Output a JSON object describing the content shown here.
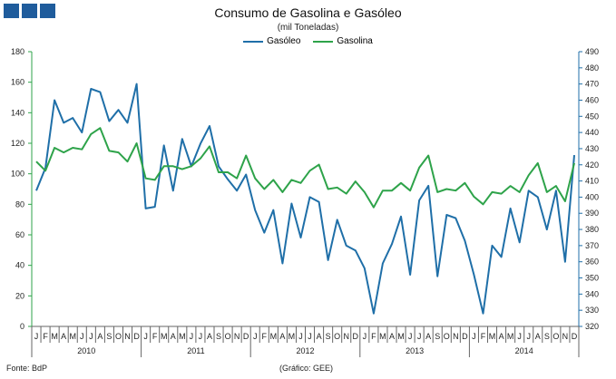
{
  "header": {
    "title": "Consumo de Gasolina e Gasóleo",
    "subtitle": "(mil Toneladas)"
  },
  "legend": {
    "gasoleo": "Gasóleo",
    "gasolina": "Gasolina"
  },
  "footer": {
    "source": "Fonte: BdP",
    "graphic": "(Gráfico: GEE)"
  },
  "colors": {
    "gasoleo": "#1f6fa8",
    "gasolina": "#2ea34a",
    "axis_left": "#2ea34a",
    "axis_right": "#1f6fa8"
  },
  "chart_data": {
    "type": "line",
    "title": "Consumo de Gasolina e Gasóleo",
    "subtitle": "(mil Toneladas)",
    "month_labels": [
      "J",
      "F",
      "M",
      "A",
      "M",
      "J",
      "J",
      "A",
      "S",
      "O",
      "N",
      "D"
    ],
    "years": [
      "2010",
      "2011",
      "2012",
      "2013",
      "2014"
    ],
    "grid": false,
    "legend_position": "top-center",
    "y_left": {
      "min": 0,
      "max": 180,
      "step": 20,
      "ticks": [
        "0",
        "20",
        "40",
        "60",
        "80",
        "100",
        "120",
        "140",
        "160",
        "180"
      ]
    },
    "y_right": {
      "min": 320,
      "max": 490,
      "step": 10,
      "ticks": [
        "320",
        "330",
        "340",
        "350",
        "360",
        "370",
        "380",
        "390",
        "400",
        "410",
        "420",
        "430",
        "440",
        "450",
        "460",
        "470",
        "480",
        "490"
      ]
    },
    "series": [
      {
        "name": "Gasóleo",
        "axis": "right",
        "values": [
          404,
          418,
          460,
          446,
          449,
          440,
          467,
          465,
          447,
          454,
          446,
          470,
          393,
          394,
          432,
          404,
          436,
          419,
          433,
          444,
          419,
          411,
          404,
          414,
          392,
          378,
          392,
          359,
          396,
          375,
          400,
          397,
          361,
          386,
          370,
          367,
          356,
          328,
          359,
          371,
          388,
          352,
          398,
          407,
          351,
          389,
          387,
          373,
          352,
          328,
          370,
          363,
          393,
          372,
          404,
          400,
          380,
          404,
          360,
          426
        ],
        "values_in_left_units": [
          88,
          99,
          150,
          131,
          135,
          124,
          156,
          154,
          134,
          142,
          133,
          162,
          82,
          84,
          119,
          93,
          122,
          105,
          119,
          131,
          105,
          96,
          88,
          99,
          76,
          62,
          76,
          37,
          83,
          56,
          90,
          79,
          41,
          66,
          50,
          46,
          34,
          8,
          37,
          52,
          72,
          32,
          82,
          92,
          33,
          71,
          68,
          53,
          30,
          8,
          52,
          45,
          75,
          51,
          88,
          83,
          60,
          88,
          41,
          112
        ]
      },
      {
        "name": "Gasolina",
        "axis": "left",
        "values": [
          108,
          102,
          117,
          114,
          117,
          116,
          126,
          130,
          115,
          114,
          108,
          120,
          97,
          96,
          105,
          105,
          103,
          105,
          110,
          118,
          101,
          101,
          97,
          112,
          97,
          90,
          96,
          88,
          96,
          94,
          102,
          106,
          90,
          91,
          87,
          95,
          88,
          78,
          89,
          89,
          94,
          89,
          104,
          112,
          88,
          90,
          89,
          94,
          85,
          80,
          88,
          87,
          92,
          88,
          99,
          107,
          88,
          92,
          82,
          107
        ]
      }
    ]
  }
}
